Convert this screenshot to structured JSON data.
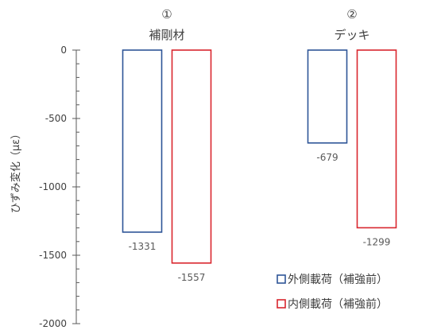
{
  "chart_data": {
    "type": "bar",
    "categories": [
      {
        "number": "①",
        "name": "補剛材"
      },
      {
        "number": "②",
        "name": "デッキ"
      }
    ],
    "series": [
      {
        "name": "外側載荷（補強前）",
        "values": [
          -1331,
          -679
        ],
        "color": "#2E5597"
      },
      {
        "name": "内側載荷（補強前）",
        "values": [
          -1557,
          -1299
        ],
        "color": "#D9262E"
      }
    ],
    "data_labels": [
      [
        "-1331",
        "-679"
      ],
      [
        "-1557",
        "-1299"
      ]
    ],
    "ylabel": "ひずみ変化（με）",
    "ylim": [
      -2000,
      0
    ],
    "yticks": [
      0,
      -500,
      -1000,
      -1500,
      -2000
    ],
    "ytick_labels": [
      "0",
      "-500",
      "-1000",
      "-1500",
      "-2000"
    ],
    "grid": false,
    "legend_position": "bottom-right"
  }
}
